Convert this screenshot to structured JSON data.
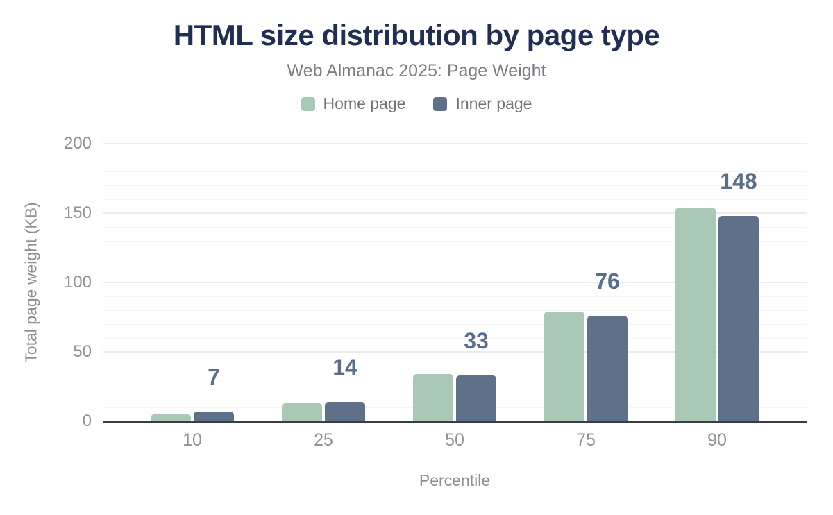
{
  "header": {
    "title": "HTML size distribution by page type",
    "subtitle": "Web Almanac 2025: Page Weight"
  },
  "legend": [
    {
      "label": "Home page",
      "color": "#a9c9b6"
    },
    {
      "label": "Inner page",
      "color": "#5e7189"
    }
  ],
  "chart_data": {
    "type": "bar",
    "title": "HTML size distribution by page type",
    "subtitle": "Web Almanac 2025: Page Weight",
    "categories": [
      "10",
      "25",
      "50",
      "75",
      "90"
    ],
    "series": [
      {
        "name": "Home page",
        "color": "#a9c9b6",
        "values": [
          5,
          13,
          34,
          79,
          154
        ]
      },
      {
        "name": "Inner page",
        "color": "#5e7189",
        "values": [
          7,
          14,
          33,
          76,
          148
        ]
      }
    ],
    "data_labels": {
      "series": "Inner page",
      "values": [
        "7",
        "14",
        "33",
        "76",
        "148"
      ]
    },
    "xlabel": "Percentile",
    "ylabel": "Total page weight (KB)",
    "ylim": [
      0,
      200
    ],
    "yticks": [
      "0",
      "50",
      "100",
      "150",
      "200"
    ],
    "grid": {
      "major_interval": 50,
      "minor_interval": 10,
      "shown": true
    },
    "legend_position": "top",
    "colors": {
      "title": "#1f2e52",
      "subtitle": "#7a7e84",
      "axis_text": "#8f9296",
      "data_label": "#5a6e8c",
      "axis_line": "#3a3e44"
    }
  }
}
